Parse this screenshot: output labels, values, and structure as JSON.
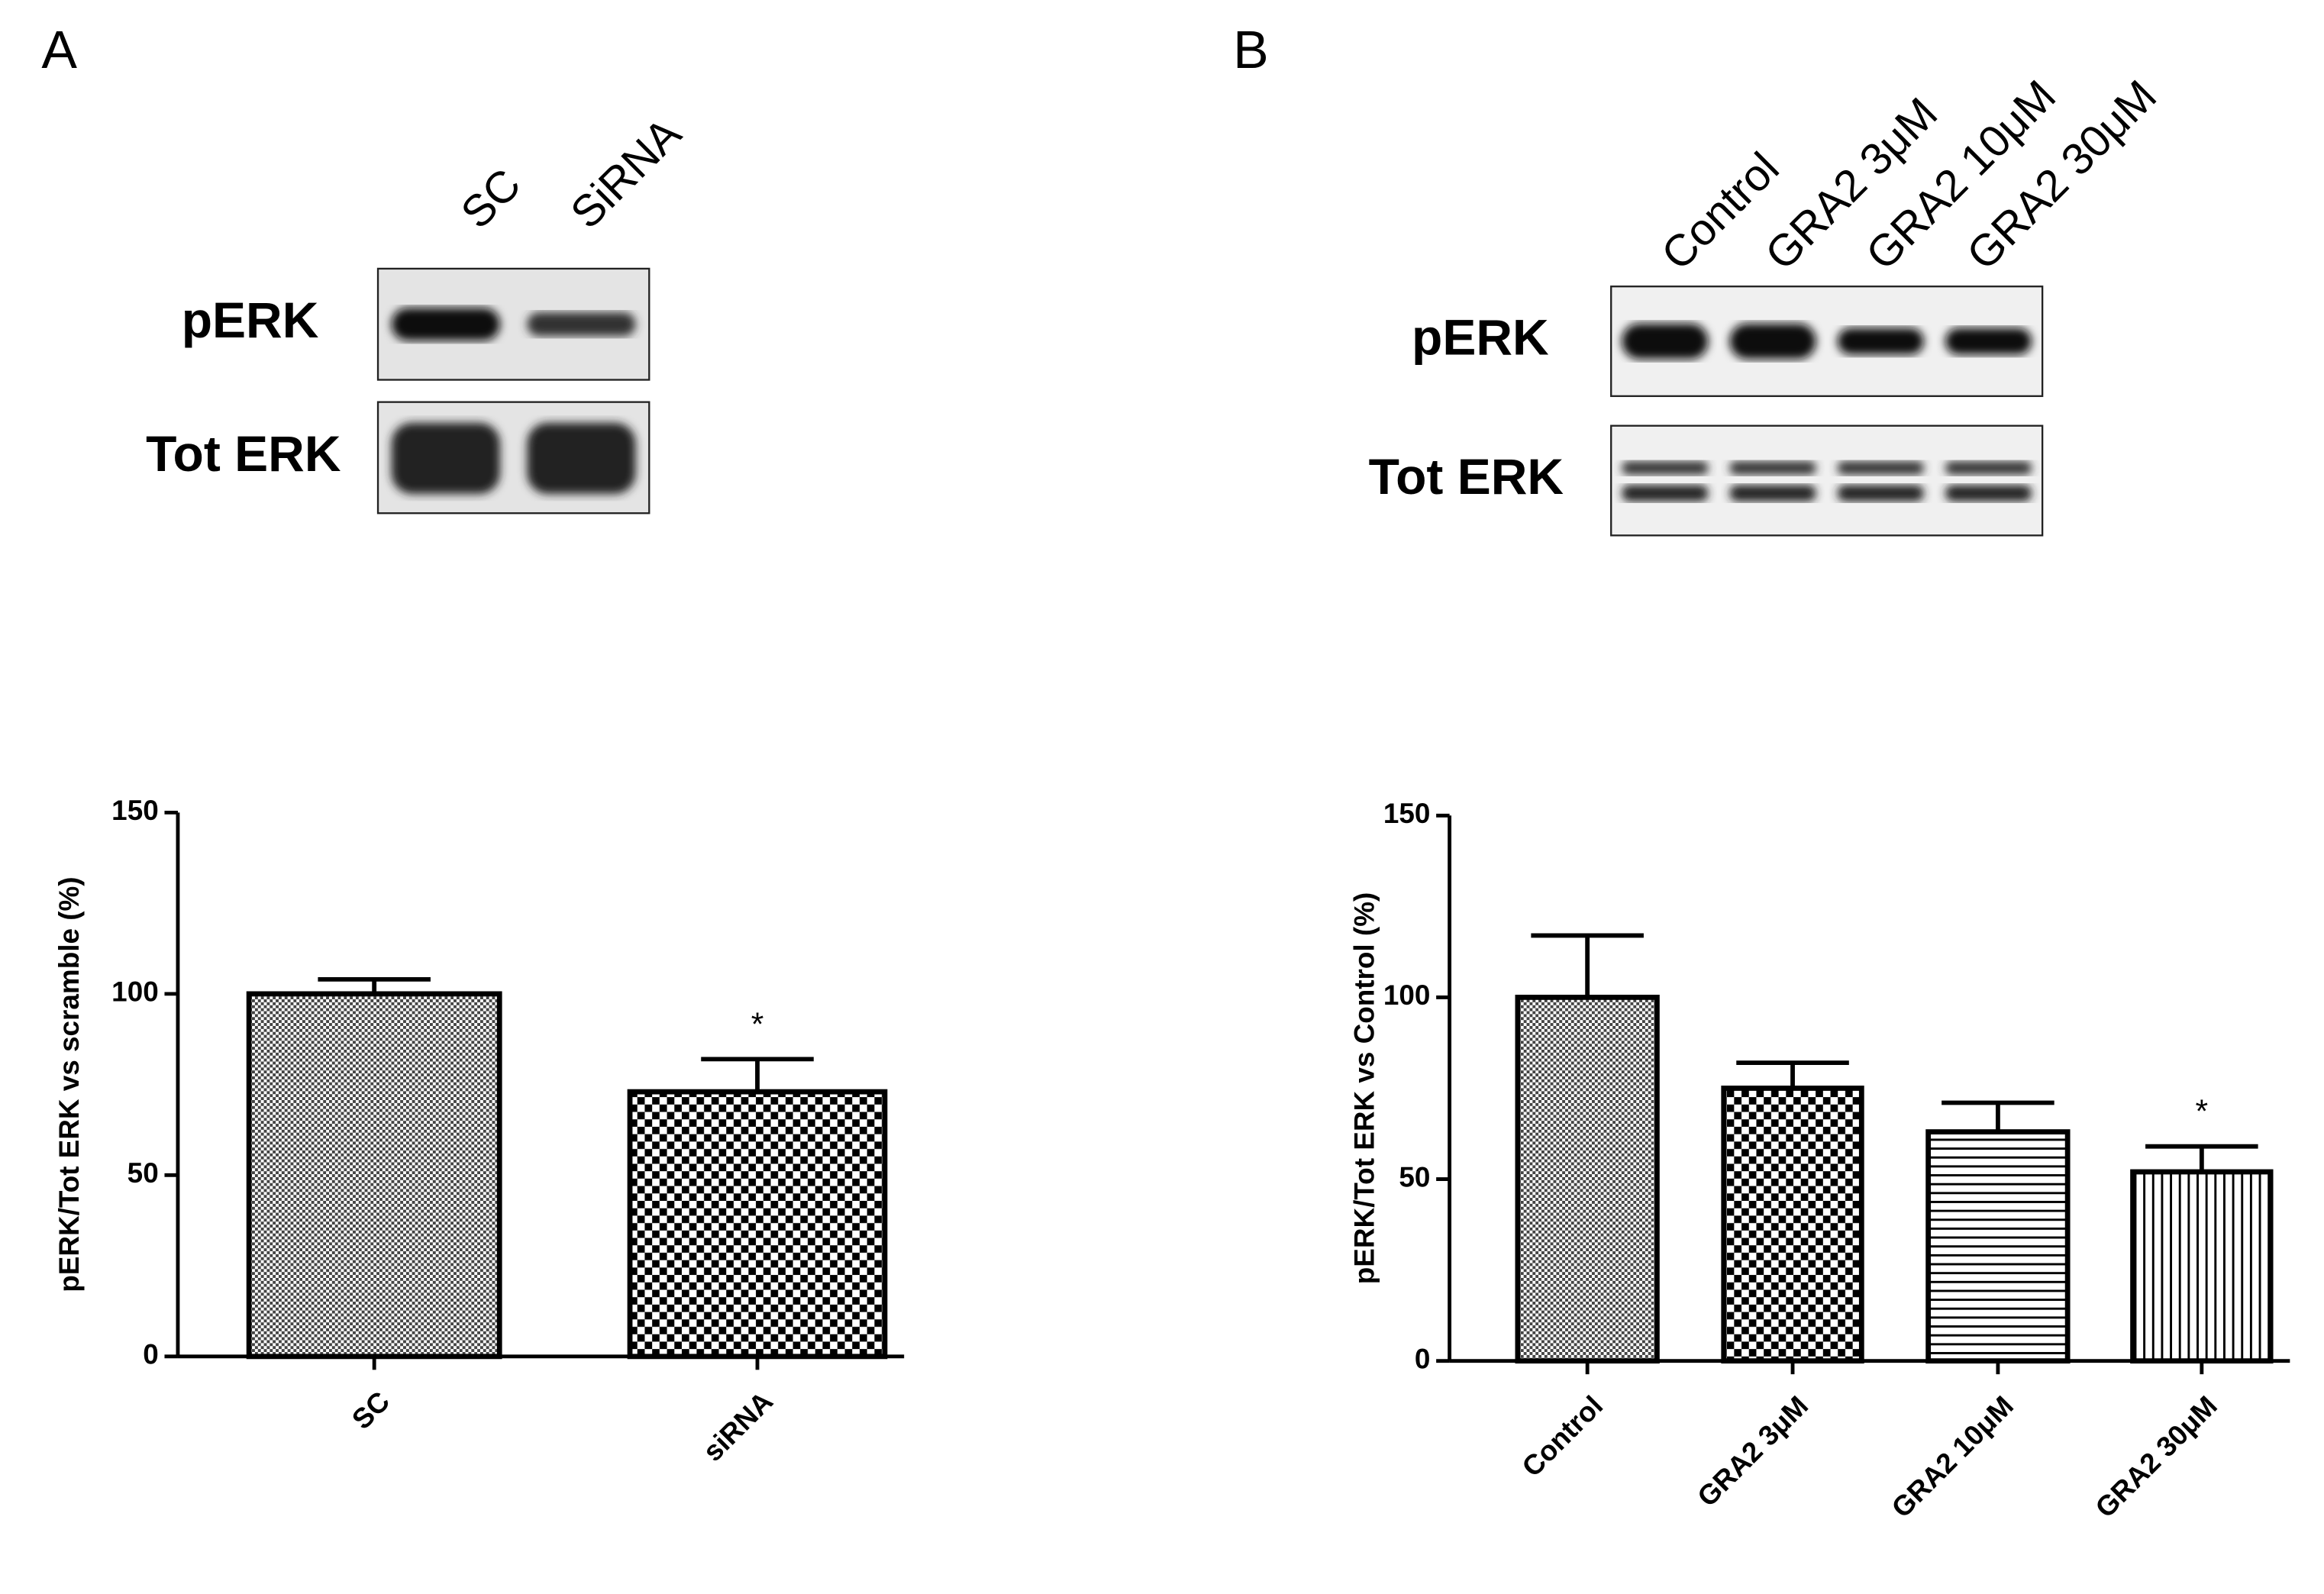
{
  "blots": [
    {
      "letter": "A",
      "lanes": [
        "SC",
        "SiRNA"
      ],
      "rows": [
        "pERK",
        "Tot ERK"
      ]
    },
    {
      "letter": "B",
      "lanes": [
        "Control",
        "GRA2 3μM",
        "GRA2 10μM",
        "GRA2 30μM"
      ],
      "rows": [
        "pERK",
        "Tot ERK"
      ]
    }
  ],
  "chart_data": [
    {
      "type": "bar",
      "y_label": "pERK/Tot ERK vs scramble (%)",
      "categories": [
        "SC",
        "siRNA"
      ],
      "values": [
        100,
        73
      ],
      "errors": [
        4,
        9
      ],
      "significance": [
        null,
        "*"
      ],
      "patterns": [
        "fine-check",
        "check"
      ],
      "color": "#000000",
      "ylim": [
        0,
        150
      ],
      "yticks": [
        0,
        50,
        100,
        150
      ]
    },
    {
      "type": "bar",
      "y_label": "pERK/Tot ERK vs Control (%)",
      "categories": [
        "Control",
        "GRA2 3μM",
        "GRA2 10μM",
        "GRA2 30μM"
      ],
      "values": [
        100,
        75,
        63,
        52
      ],
      "errors": [
        17,
        7,
        8,
        7
      ],
      "significance": [
        null,
        null,
        null,
        "*"
      ],
      "patterns": [
        "fine-check",
        "check",
        "hlines",
        "vlines"
      ],
      "color": "#000000",
      "ylim": [
        0,
        150
      ],
      "yticks": [
        0,
        50,
        100,
        150
      ]
    }
  ]
}
